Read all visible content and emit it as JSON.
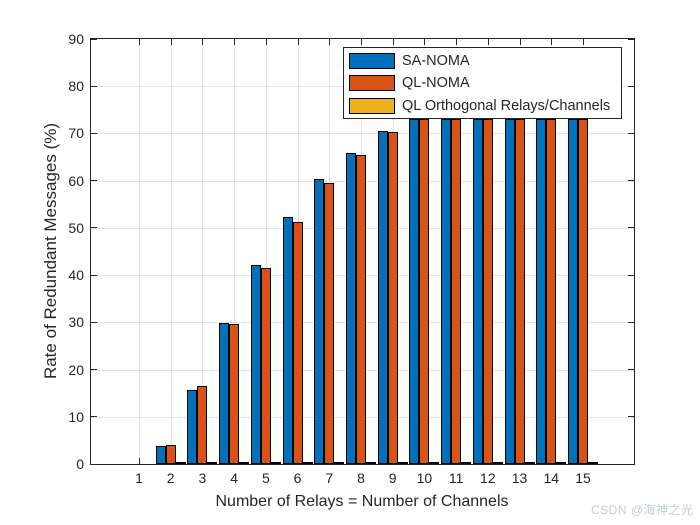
{
  "watermark": "CSDN @海神之光",
  "colors": {
    "axis": "#262626",
    "grid": "#e2e2e2",
    "background": "#ffffff",
    "bar_edge": "#000000",
    "watermark_text": "#c2ccd4"
  },
  "chart_data": {
    "type": "bar",
    "title": "",
    "xlabel": "Number of Relays = Number of Channels",
    "ylabel": "Rate of Redundant Messages (%)",
    "categories": [
      1,
      2,
      3,
      4,
      5,
      6,
      7,
      8,
      9,
      10,
      11,
      12,
      13,
      14,
      15
    ],
    "series": [
      {
        "name": "SA-NOMA",
        "color": "#0072BD",
        "values": [
          0,
          3.8,
          15.7,
          29.8,
          42.1,
          52.4,
          60.3,
          65.9,
          70.5,
          73,
          73,
          73,
          73,
          73,
          73
        ]
      },
      {
        "name": "QL-NOMA",
        "color": "#D95319",
        "values": [
          0,
          4.1,
          16.6,
          29.7,
          41.4,
          51.3,
          59.4,
          65.4,
          70.4,
          73,
          73,
          73,
          73,
          73,
          73
        ]
      },
      {
        "name": "QL Orthogonal Relays/Channels",
        "color": "#EDB120",
        "values": [
          0,
          0.4,
          0.4,
          0.4,
          0.4,
          0.4,
          0.4,
          0.4,
          0.4,
          0.4,
          0.4,
          0.4,
          0.4,
          0.4,
          0.4
        ]
      }
    ],
    "ylim": [
      0,
      90
    ],
    "yticks": [
      0,
      10,
      20,
      30,
      40,
      50,
      60,
      70,
      80,
      90
    ],
    "grid": true,
    "legend_position": "top-right-inside"
  }
}
